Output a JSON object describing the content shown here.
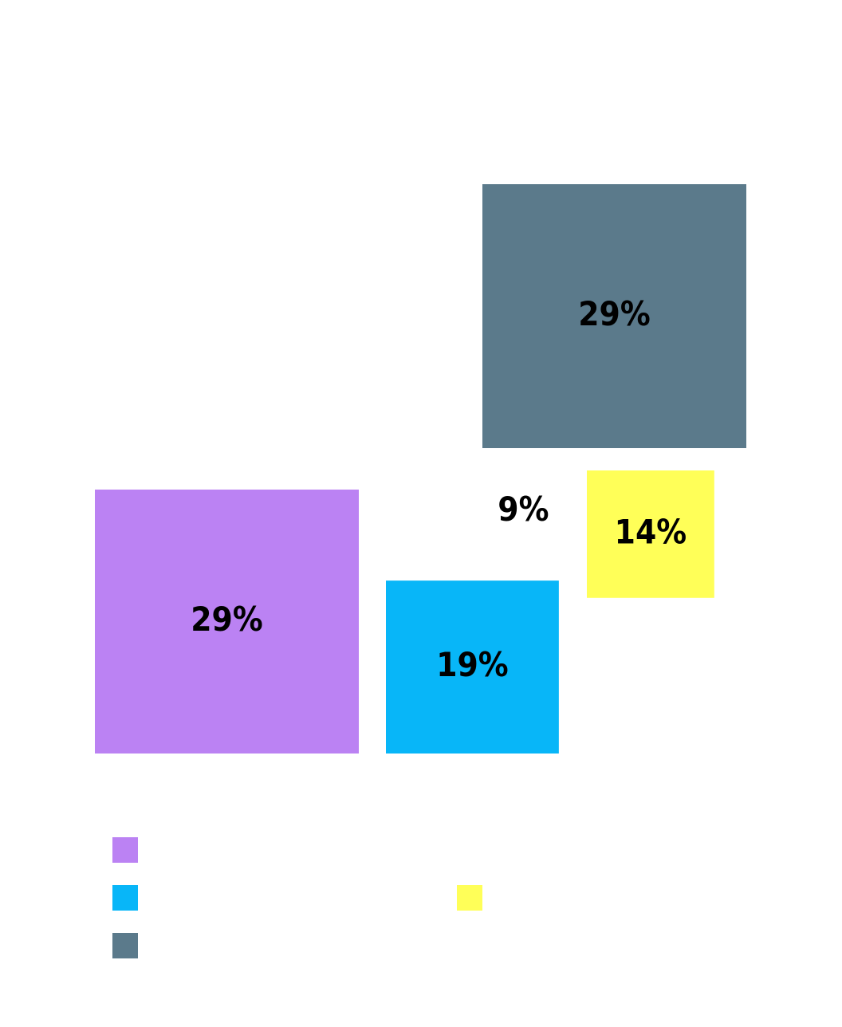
{
  "chart_data": {
    "type": "square",
    "values": [
      29,
      19,
      29,
      9,
      14
    ],
    "value_labels": [
      "29%",
      "19%",
      "29%",
      "9%",
      "14%"
    ],
    "colors": [
      "#bb82f3",
      "#08b6f8",
      "#5b7a8b",
      "#ffffff",
      "#ffff58"
    ],
    "legend": true
  }
}
